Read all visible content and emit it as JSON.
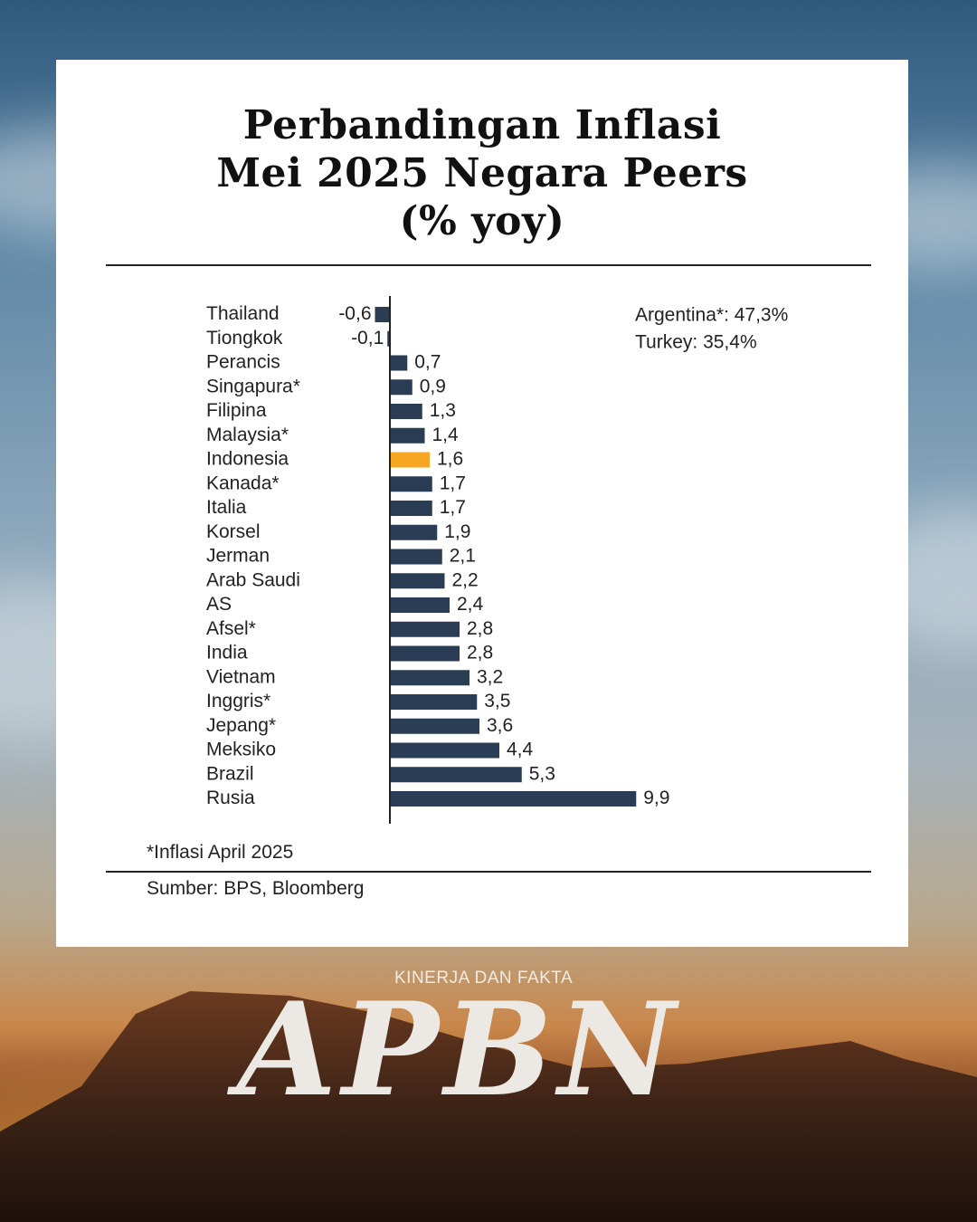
{
  "title": {
    "line1": "Perbandingan Inflasi",
    "line2": "Mei 2025 Negara Peers",
    "line3": "(% yoy)"
  },
  "chart_data": {
    "type": "bar",
    "orientation": "horizontal",
    "title": "Perbandingan Inflasi Mei 2025 Negara Peers (% yoy)",
    "categories": [
      "Thailand",
      "Tiongkok",
      "Perancis",
      "Singapura*",
      "Filipina",
      "Malaysia*",
      "Indonesia",
      "Kanada*",
      "Italia",
      "Korsel",
      "Jerman",
      "Arab Saudi",
      "AS",
      "Afsel*",
      "India",
      "Vietnam",
      "Inggris*",
      "Jepang*",
      "Meksiko",
      "Brazil",
      "Rusia"
    ],
    "values": [
      -0.6,
      -0.1,
      0.7,
      0.9,
      1.3,
      1.4,
      1.6,
      1.7,
      1.7,
      1.9,
      2.1,
      2.2,
      2.4,
      2.8,
      2.8,
      3.2,
      3.5,
      3.6,
      4.4,
      5.3,
      9.9
    ],
    "value_labels": [
      "-0,6",
      "-0,1",
      "0,7",
      "0,9",
      "1,3",
      "1,4",
      "1,6",
      "1,7",
      "1,7",
      "1,9",
      "2,1",
      "2,2",
      "2,4",
      "2,8",
      "2,8",
      "3,2",
      "3,5",
      "3,6",
      "4,4",
      "5,3",
      "9,9"
    ],
    "highlight": "Indonesia",
    "colors": {
      "bar": "#2b3d55",
      "highlight": "#f7a623"
    },
    "annotations": [
      "Argentina*: 47,3%",
      "Turkey: 35,4%"
    ]
  },
  "footnote": "*Inflasi April 2025",
  "source": "Sumber: BPS, Bloomberg",
  "brand": {
    "subtitle": "KINERJA DAN FAKTA",
    "name": "APBN"
  }
}
